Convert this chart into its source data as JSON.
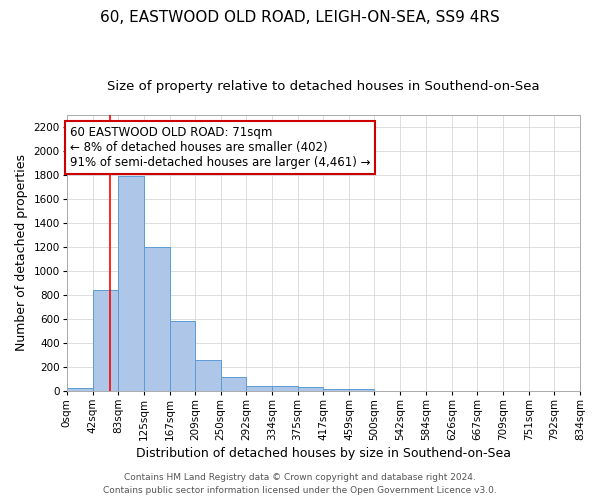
{
  "title": "60, EASTWOOD OLD ROAD, LEIGH-ON-SEA, SS9 4RS",
  "subtitle": "Size of property relative to detached houses in Southend-on-Sea",
  "xlabel": "Distribution of detached houses by size in Southend-on-Sea",
  "ylabel": "Number of detached properties",
  "bin_labels": [
    "0sqm",
    "42sqm",
    "83sqm",
    "125sqm",
    "167sqm",
    "209sqm",
    "250sqm",
    "292sqm",
    "334sqm",
    "375sqm",
    "417sqm",
    "459sqm",
    "500sqm",
    "542sqm",
    "584sqm",
    "626sqm",
    "667sqm",
    "709sqm",
    "751sqm",
    "792sqm",
    "834sqm"
  ],
  "bin_edges": [
    0,
    42,
    83,
    125,
    167,
    209,
    250,
    292,
    334,
    375,
    417,
    459,
    500,
    542,
    584,
    626,
    667,
    709,
    751,
    792,
    834
  ],
  "bar_values": [
    25,
    845,
    1790,
    1200,
    580,
    255,
    120,
    45,
    40,
    30,
    20,
    15,
    0,
    0,
    0,
    0,
    0,
    0,
    0,
    0
  ],
  "ylim": [
    0,
    2300
  ],
  "yticks": [
    0,
    200,
    400,
    600,
    800,
    1000,
    1200,
    1400,
    1600,
    1800,
    2000,
    2200
  ],
  "bar_color": "#aec6e8",
  "bar_edge_color": "#5b9bd5",
  "red_line_x": 71,
  "annotation_line1": "60 EASTWOOD OLD ROAD: 71sqm",
  "annotation_line2": "← 8% of detached houses are smaller (402)",
  "annotation_line3": "91% of semi-detached houses are larger (4,461) →",
  "annotation_box_color": "#ffffff",
  "annotation_box_edge": "#cc0000",
  "footer_line1": "Contains HM Land Registry data © Crown copyright and database right 2024.",
  "footer_line2": "Contains public sector information licensed under the Open Government Licence v3.0.",
  "title_fontsize": 11,
  "subtitle_fontsize": 9.5,
  "axis_label_fontsize": 9,
  "tick_fontsize": 7.5,
  "annotation_fontsize": 8.5,
  "footer_fontsize": 6.5
}
